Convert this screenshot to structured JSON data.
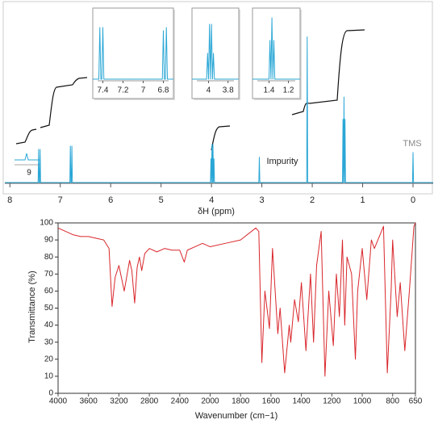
{
  "chart_data": [
    {
      "type": "line",
      "xlabel": "δH (ppm)",
      "xlim": [
        8.1,
        -0.4
      ],
      "xticks": [
        8,
        7,
        6,
        5,
        4,
        3,
        2,
        1,
        0
      ],
      "ylim": [
        0,
        100
      ],
      "color": "#2aa7d6",
      "annotations": [
        "Impurity",
        "TMS",
        "9"
      ],
      "x": [
        8.1,
        7.44,
        7.43,
        7.42,
        7.41,
        7.4,
        7.39,
        6.81,
        6.8,
        6.79,
        6.78,
        6.77,
        6.76,
        4.02,
        4.01,
        4.0,
        3.99,
        3.98,
        3.97,
        3.96,
        3.95,
        3.94,
        3.06,
        3.05,
        3.04,
        2.11,
        2.1,
        2.09,
        1.4,
        1.39,
        1.38,
        1.37,
        1.36,
        1.35,
        1.34,
        0.01,
        0,
        -0.01,
        -0.4
      ],
      "values": [
        0,
        0,
        21,
        0,
        0,
        21,
        0,
        0,
        23,
        0,
        0,
        23,
        0,
        0,
        15,
        0,
        24,
        0,
        24,
        0,
        15,
        0,
        0,
        16,
        0,
        0,
        92,
        0,
        0,
        40,
        0,
        54,
        0,
        40,
        0,
        0,
        19,
        0,
        0
      ]
    },
    {
      "type": "line",
      "xlim": [
        7.5,
        6.7
      ],
      "xticks": [
        7.4,
        7.2,
        7.0,
        6.8
      ],
      "ylim": [
        0,
        100
      ],
      "color": "#2aa7d6",
      "x": [
        7.5,
        7.44,
        7.43,
        7.42,
        7.41,
        7.4,
        7.39,
        6.81,
        6.8,
        6.79,
        6.78,
        6.77,
        6.76,
        6.7
      ],
      "values": [
        0,
        0,
        80,
        0,
        0,
        80,
        0,
        0,
        75,
        0,
        0,
        80,
        0,
        0
      ]
    },
    {
      "type": "line",
      "xlim": [
        4.17,
        3.69
      ],
      "xticks": [
        4.0,
        3.8
      ],
      "ylim": [
        0,
        100
      ],
      "color": "#2aa7d6",
      "x": [
        4.17,
        4.02,
        4.01,
        4.0,
        3.99,
        3.98,
        3.97,
        3.96,
        3.95,
        3.94,
        3.69
      ],
      "values": [
        0,
        0,
        40,
        0,
        85,
        0,
        85,
        0,
        40,
        0,
        0
      ]
    },
    {
      "type": "line",
      "xlim": [
        1.57,
        1.08
      ],
      "xticks": [
        1.4,
        1.2
      ],
      "ylim": [
        0,
        100
      ],
      "color": "#2aa7d6",
      "x": [
        1.57,
        1.4,
        1.39,
        1.38,
        1.37,
        1.36,
        1.35,
        1.34,
        1.08
      ],
      "values": [
        0,
        0,
        60,
        0,
        95,
        0,
        60,
        0,
        0
      ]
    },
    {
      "type": "line",
      "xlabel": "Wavenumber (cm−1)",
      "ylabel": "Transmittance (%)",
      "xlim": [
        4000,
        650
      ],
      "x_scale_break": 2000,
      "x_scale_ratio": 2,
      "xticks": [
        4000,
        3600,
        3200,
        2800,
        2400,
        2000,
        1800,
        1600,
        1400,
        1200,
        1000,
        800,
        650
      ],
      "ylim": [
        0,
        100
      ],
      "yticks": [
        0,
        10,
        20,
        30,
        40,
        50,
        60,
        70,
        80,
        90,
        100
      ],
      "color": "#d9262b",
      "x": [
        4000,
        3900,
        3800,
        3700,
        3600,
        3500,
        3400,
        3330,
        3290,
        3250,
        3200,
        3130,
        3060,
        3030,
        2993,
        2960,
        2930,
        2900,
        2860,
        2800,
        2700,
        2600,
        2500,
        2400,
        2340,
        2300,
        2200,
        2100,
        2000,
        1900,
        1800,
        1700,
        1680,
        1660,
        1640,
        1610,
        1590,
        1555,
        1540,
        1510,
        1480,
        1470,
        1445,
        1420,
        1400,
        1370,
        1340,
        1320,
        1300,
        1270,
        1245,
        1220,
        1190,
        1170,
        1150,
        1130,
        1115,
        1100,
        1070,
        1045,
        1030,
        1000,
        970,
        940,
        920,
        860,
        835,
        810,
        800,
        770,
        750,
        720,
        690,
        660,
        650
      ],
      "values": [
        97,
        95,
        93,
        92,
        92,
        91,
        90,
        85,
        51,
        68,
        75,
        60,
        78,
        72,
        53,
        74,
        80,
        72,
        82,
        85,
        83,
        85,
        84,
        84,
        77,
        84,
        86,
        88,
        86,
        88,
        90,
        97,
        95,
        18,
        60,
        38,
        85,
        35,
        50,
        12,
        40,
        30,
        55,
        42,
        65,
        25,
        70,
        30,
        75,
        95,
        10,
        60,
        28,
        70,
        45,
        90,
        40,
        80,
        70,
        20,
        60,
        85,
        55,
        90,
        85,
        98,
        12,
        60,
        90,
        45,
        65,
        25,
        60,
        98,
        100
      ]
    }
  ]
}
